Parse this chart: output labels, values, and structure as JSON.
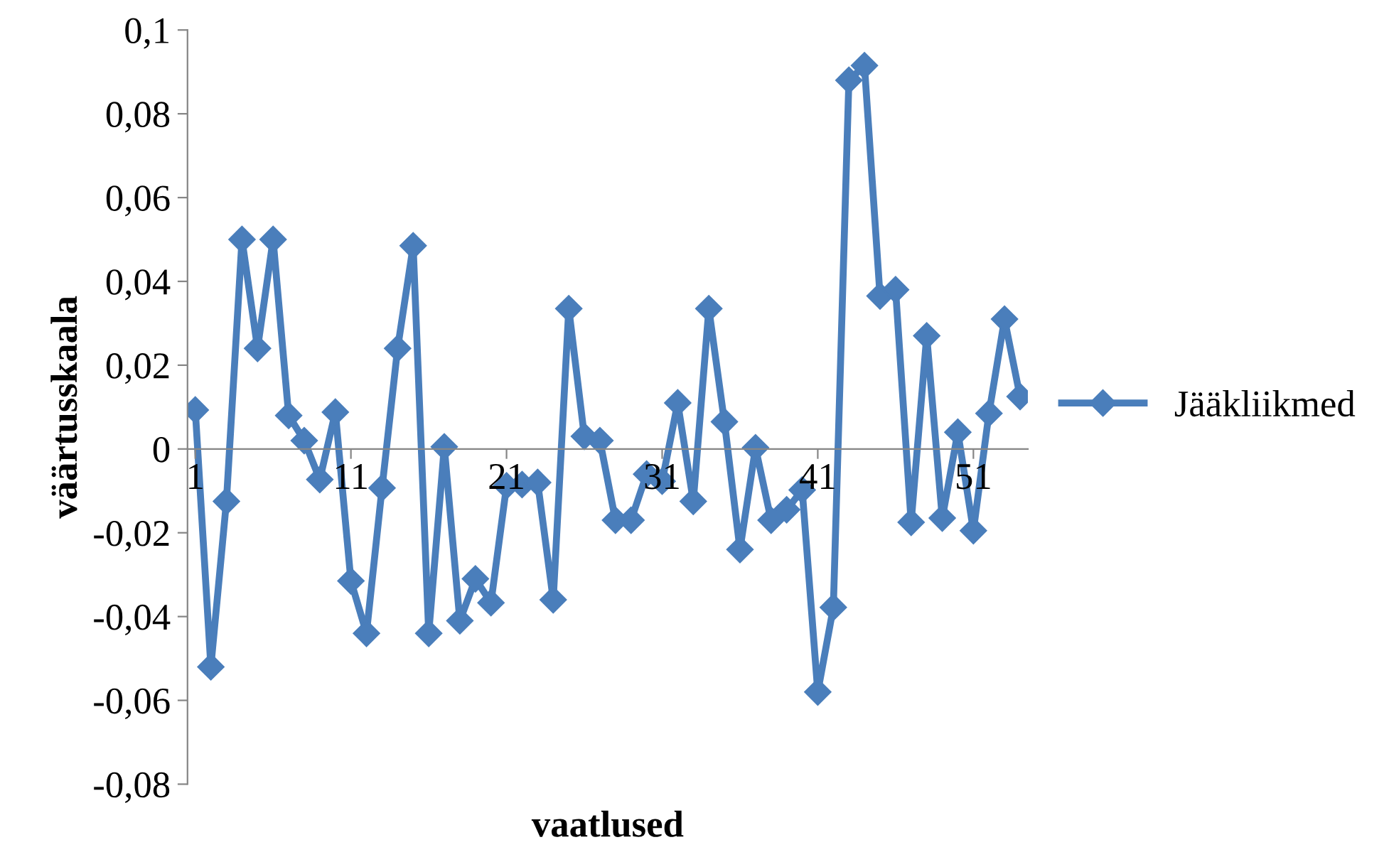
{
  "chart_data": {
    "type": "line",
    "xlabel": "vaatlused",
    "ylabel": "väärtusskaala",
    "categories": [
      "1",
      null,
      null,
      null,
      null,
      null,
      null,
      null,
      null,
      null,
      "11",
      null,
      null,
      null,
      null,
      null,
      null,
      null,
      null,
      null,
      "21",
      null,
      null,
      null,
      null,
      null,
      null,
      null,
      null,
      null,
      "31",
      null,
      null,
      null,
      null,
      null,
      null,
      null,
      null,
      null,
      "41",
      null,
      null,
      null,
      null,
      null,
      null,
      null,
      null,
      null,
      "51",
      null,
      null,
      null
    ],
    "series": [
      {
        "name": "Jääkliikmed",
        "color": "#4a7ebb",
        "values": [
          0.0093,
          -0.052,
          -0.0125,
          0.05,
          0.024,
          0.05,
          0.008,
          0.002,
          -0.0073,
          0.0088,
          -0.0315,
          -0.044,
          -0.0093,
          0.024,
          0.0485,
          -0.044,
          0.0005,
          -0.041,
          -0.031,
          -0.0367,
          -0.0088,
          -0.0085,
          -0.008,
          -0.036,
          0.0335,
          0.003,
          0.002,
          -0.017,
          -0.017,
          -0.006,
          -0.0077,
          0.011,
          -0.0125,
          0.0335,
          0.0065,
          -0.024,
          0.0003,
          -0.017,
          -0.0145,
          -0.0098,
          -0.058,
          -0.0378,
          0.088,
          0.0915,
          0.0365,
          0.038,
          -0.0175,
          0.027,
          -0.0165,
          0.004,
          -0.0195,
          0.0085,
          0.031,
          0.0125
        ]
      }
    ],
    "ylim": [
      -0.08,
      0.1
    ],
    "yticks": [
      {
        "value": -0.08,
        "label": "-0,08"
      },
      {
        "value": -0.06,
        "label": "-0,06"
      },
      {
        "value": -0.04,
        "label": "-0,04"
      },
      {
        "value": -0.02,
        "label": "-0,02"
      },
      {
        "value": 0,
        "label": "0"
      },
      {
        "value": 0.02,
        "label": "0,02"
      },
      {
        "value": 0.04,
        "label": "0,04"
      },
      {
        "value": 0.06,
        "label": "0,06"
      },
      {
        "value": 0.08,
        "label": "0,08"
      },
      {
        "value": 0.1,
        "label": "0,1"
      }
    ],
    "grid": false,
    "legend": "right",
    "marker": "diamond",
    "line_style": "solid"
  }
}
